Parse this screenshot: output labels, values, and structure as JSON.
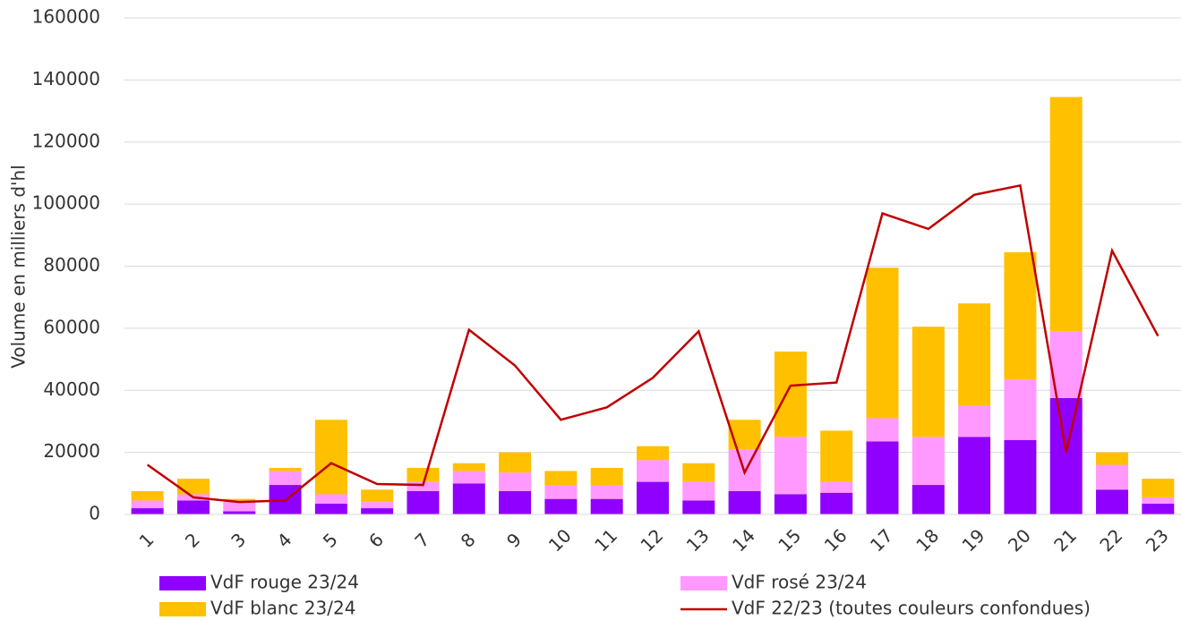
{
  "chart_data": {
    "type": "bar-line",
    "y_label": "Volume en milliers d'hl",
    "categories": [
      "1",
      "2",
      "3",
      "4",
      "5",
      "6",
      "7",
      "8",
      "9",
      "10",
      "11",
      "12",
      "13",
      "14",
      "15",
      "16",
      "17",
      "18",
      "19",
      "20",
      "21",
      "22",
      "23"
    ],
    "series": [
      {
        "name": "VdF rouge 23/24",
        "color": "#8f00ff",
        "kind": "bar",
        "values": [
          2000,
          4500,
          1000,
          9500,
          3500,
          2000,
          7500,
          10000,
          7500,
          5000,
          5000,
          10500,
          4500,
          7500,
          6500,
          7000,
          23500,
          9500,
          25000,
          24000,
          37500,
          8000,
          3500
        ]
      },
      {
        "name": "VdF rosé 23/24",
        "color": "#ff99ff",
        "kind": "bar",
        "values": [
          2500,
          2000,
          3000,
          4500,
          3000,
          2000,
          3000,
          4000,
          6000,
          4500,
          4500,
          7000,
          6000,
          13500,
          18500,
          3500,
          7500,
          15500,
          10000,
          19500,
          21500,
          8000,
          2000
        ]
      },
      {
        "name": "VdF blanc 23/24",
        "color": "#ffc000",
        "kind": "bar",
        "values": [
          3000,
          5000,
          1000,
          1000,
          24000,
          4000,
          4500,
          2500,
          6500,
          4500,
          5500,
          4500,
          6000,
          9500,
          27500,
          16500,
          48500,
          35500,
          33000,
          41000,
          75500,
          4000,
          6000
        ]
      },
      {
        "name": "VdF 22/23 (toutes couleurs confondues)",
        "color": "#c00000",
        "kind": "line",
        "values": [
          16000,
          5500,
          4000,
          4500,
          16500,
          9800,
          9500,
          59500,
          48000,
          30500,
          34500,
          44000,
          59000,
          13500,
          41500,
          42500,
          97000,
          92000,
          103000,
          106000,
          20000,
          85000,
          57500
        ]
      }
    ],
    "ylim": [
      0,
      160000
    ],
    "yticks": [
      0,
      20000,
      40000,
      60000,
      80000,
      100000,
      120000,
      140000,
      160000
    ],
    "grid": true
  }
}
